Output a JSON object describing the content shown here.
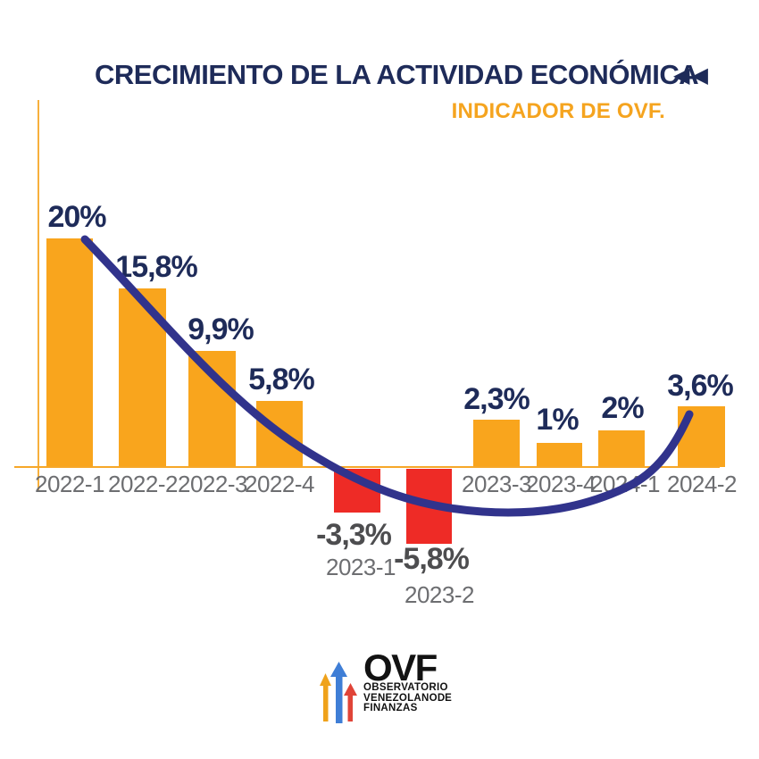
{
  "header": {
    "title": "CRECIMIENTO DE LA ACTIVIDAD ECONÓMICA",
    "subtitle": "INDICADOR DE OVF.",
    "icons": {
      "double_back": "◀◀"
    }
  },
  "chart_data": {
    "type": "bar",
    "title": "CRECIMIENTO DE LA ACTIVIDAD ECONÓMICA",
    "subtitle": "INDICADOR DE OVF.",
    "categories": [
      "2022-1",
      "2022-2",
      "2022-3",
      "2022-4",
      "2023-1",
      "2023-2",
      "2023-3",
      "2023-4",
      "2024-1",
      "2024-2"
    ],
    "values": [
      20,
      15.8,
      9.9,
      5.8,
      -3.3,
      -5.8,
      2.3,
      1,
      2,
      3.6
    ],
    "value_labels": [
      "20%",
      "15,8%",
      "9,9%",
      "5,8%",
      "-3,3%",
      "-5,8%",
      "2,3%",
      "1%",
      "2%",
      "3,6%"
    ],
    "xlabel": "",
    "ylabel": "",
    "ylim": [
      -8,
      22
    ],
    "grid": false,
    "legend": false,
    "trend_line": true,
    "colors": {
      "positive_bar": "#F9A51D",
      "negative_bar": "#EE2B26",
      "trend_line": "#31338C",
      "positive_label": "#1E2B59",
      "negative_label": "#4D4D4F",
      "category_label": "#6D6E71",
      "axis": "#F6A728"
    }
  },
  "logo": {
    "name": "OVF",
    "line1": "OBSERVATORIO",
    "line2a": "VENEZOLANO",
    "line2b": "DE",
    "line3": "FINANZAS",
    "arrow_colors": {
      "left": "#EFA21B",
      "center": "#3F7ED6",
      "right": "#E04438"
    }
  }
}
